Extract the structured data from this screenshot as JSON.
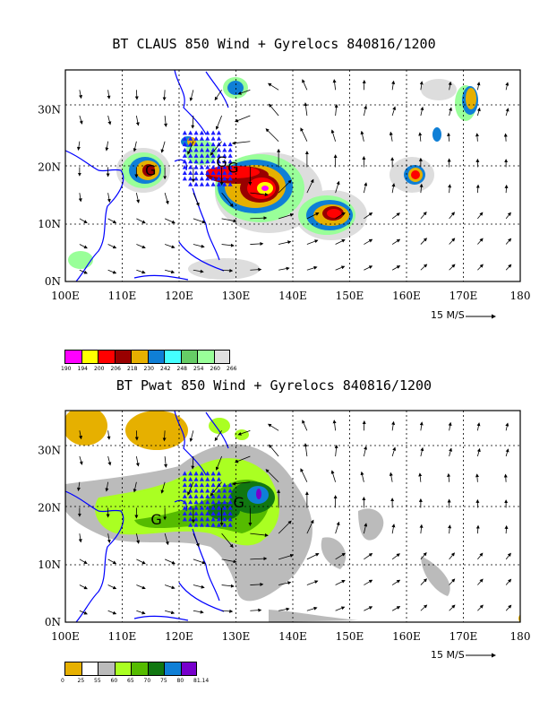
{
  "panels": [
    {
      "id": "claus",
      "title": "BT CLAUS 850 Wind + Gyrelocs 840816/1200",
      "x_ticks": [
        "100E",
        "110E",
        "120E",
        "130E",
        "140E",
        "150E",
        "160E",
        "170E",
        "180"
      ],
      "y_ticks": [
        "0N",
        "10N",
        "20N",
        "30N"
      ],
      "scale_label": "15 M/S",
      "colorbar": {
        "labels": [
          "190",
          "194",
          "200",
          "206",
          "218",
          "230",
          "242",
          "248",
          "254",
          "260",
          "266"
        ],
        "colors": [
          "#ff00ff",
          "#ffff00",
          "#ff0000",
          "#990000",
          "#e6b000",
          "#0f7fd6",
          "#44ffff",
          "#66cc66",
          "#99ff99",
          "#e0e0e0"
        ]
      },
      "gyres": [
        {
          "label": "G",
          "lon": 115,
          "lat": 19.5
        },
        {
          "label": "G",
          "lon": 127.5,
          "lat": 21
        },
        {
          "label": "G",
          "lon": 129.5,
          "lat": 20
        }
      ]
    },
    {
      "id": "pwat",
      "title": "BT Pwat 850 Wind + Gyrelocs 840816/1200",
      "x_ticks": [
        "100E",
        "110E",
        "120E",
        "130E",
        "140E",
        "150E",
        "160E",
        "170E",
        "180"
      ],
      "y_ticks": [
        "0N",
        "10N",
        "20N",
        "30N"
      ],
      "scale_label": "15 M/S",
      "colorbar": {
        "labels": [
          "0",
          "25",
          "55",
          "60",
          "65",
          "70",
          "75",
          "80",
          "81.14"
        ],
        "colors": [
          "#e6b000",
          "#ffffff",
          "#bbbbbb",
          "#aaff22",
          "#55bb00",
          "#117711",
          "#0f7fd6",
          "#7700cc"
        ]
      },
      "gyres": [
        {
          "label": "G",
          "lon": 116,
          "lat": 18
        },
        {
          "label": "G",
          "lon": 130.5,
          "lat": 21
        }
      ]
    }
  ]
}
